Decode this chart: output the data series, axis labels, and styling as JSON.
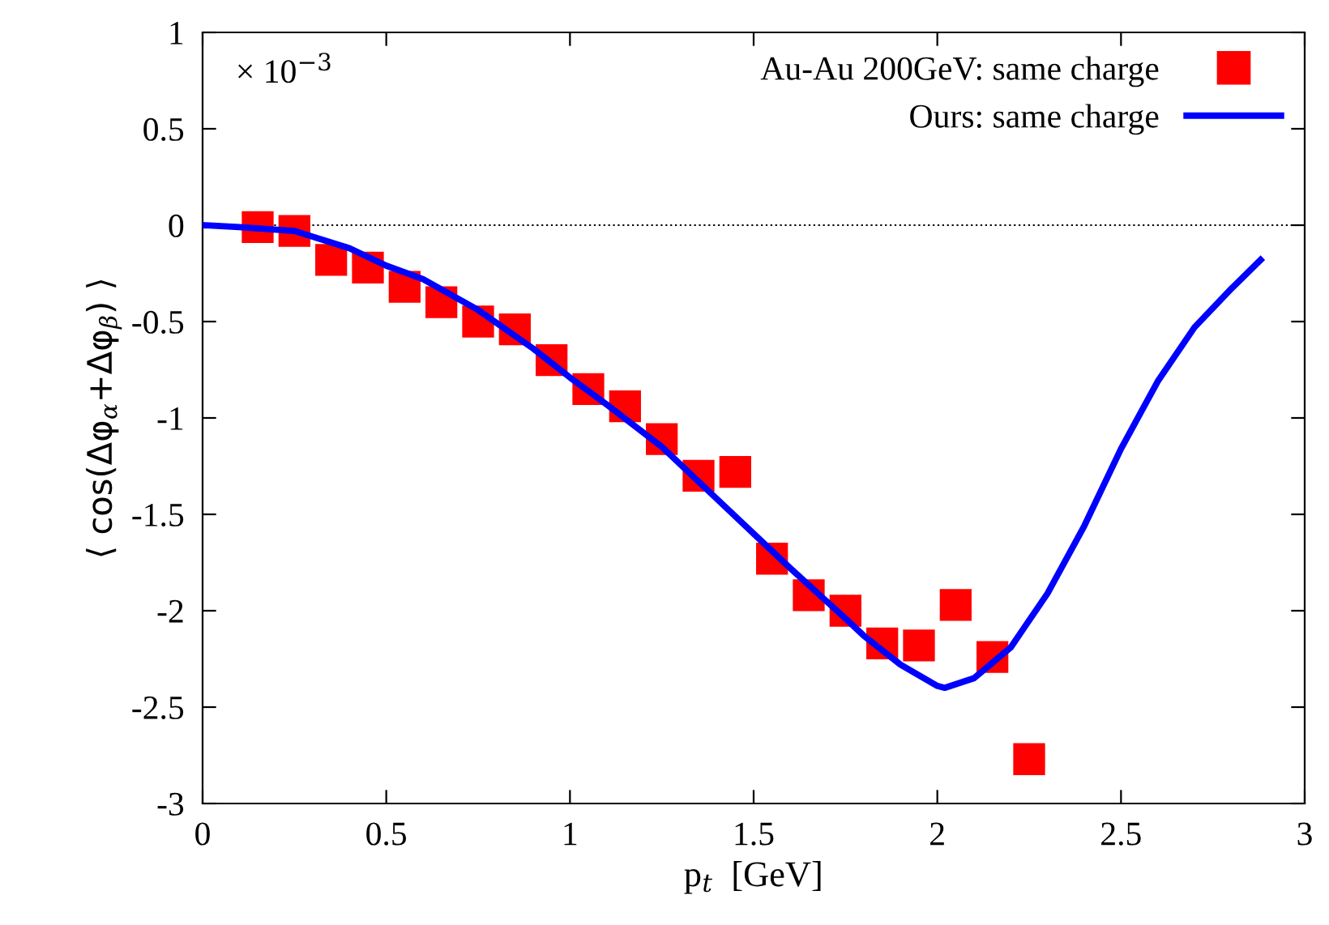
{
  "chart_data": {
    "type": "scatter",
    "xlabel": "p$_{t}$  [GeV]",
    "ylabel": "⟨ cos(Δφ$_{α}$+Δφ$_{β}$) ⟩",
    "annotations": [
      "× 10$^{−3}$"
    ],
    "series": [
      {
        "name": "Au-Au 200GeV: same charge",
        "type": "scatter",
        "marker": "square",
        "color": "#ff0000",
        "x": [
          0.15,
          0.25,
          0.35,
          0.45,
          0.55,
          0.65,
          0.75,
          0.85,
          0.95,
          1.05,
          1.15,
          1.25,
          1.35,
          1.45,
          1.55,
          1.65,
          1.75,
          1.85,
          1.95,
          2.05,
          2.15,
          2.25
        ],
        "values": [
          -0.01,
          -0.03,
          -0.18,
          -0.22,
          -0.32,
          -0.4,
          -0.5,
          -0.54,
          -0.7,
          -0.85,
          -0.94,
          -1.11,
          -1.3,
          -1.28,
          -1.73,
          -1.92,
          -2.0,
          -2.17,
          -2.18,
          -1.97,
          -2.24,
          -2.77
        ]
      },
      {
        "name": "Ours: same charge",
        "type": "line",
        "marker": "none",
        "line_style": "solid",
        "color": "#0000ff",
        "x": [
          0,
          0.1,
          0.25,
          0.4,
          0.5,
          0.6,
          0.75,
          0.9,
          1.0,
          1.1,
          1.25,
          1.4,
          1.5,
          1.6,
          1.75,
          1.8,
          1.9,
          2.0,
          2.02,
          2.1,
          2.2,
          2.3,
          2.4,
          2.5,
          2.6,
          2.7,
          2.8,
          2.88
        ],
        "values": [
          0,
          -0.01,
          -0.03,
          -0.12,
          -0.21,
          -0.28,
          -0.44,
          -0.64,
          -0.79,
          -0.93,
          -1.15,
          -1.42,
          -1.6,
          -1.78,
          -2.04,
          -2.13,
          -2.28,
          -2.39,
          -2.4,
          -2.35,
          -2.19,
          -1.91,
          -1.56,
          -1.16,
          -0.81,
          -0.53,
          -0.33,
          -0.18
        ]
      }
    ],
    "ref_lines": [
      {
        "axis": "y",
        "value": 0,
        "color": "#000000",
        "line_style": "dotted"
      }
    ],
    "xlim": [
      0,
      3
    ],
    "ylim": [
      -3,
      1
    ],
    "xticks": [
      0,
      0.5,
      1,
      1.5,
      2,
      2.5,
      3
    ],
    "yticks": [
      -3,
      -2.5,
      -2,
      -1.5,
      -1,
      -0.5,
      0,
      0.5,
      1
    ],
    "grid": false,
    "legend": "top right"
  }
}
